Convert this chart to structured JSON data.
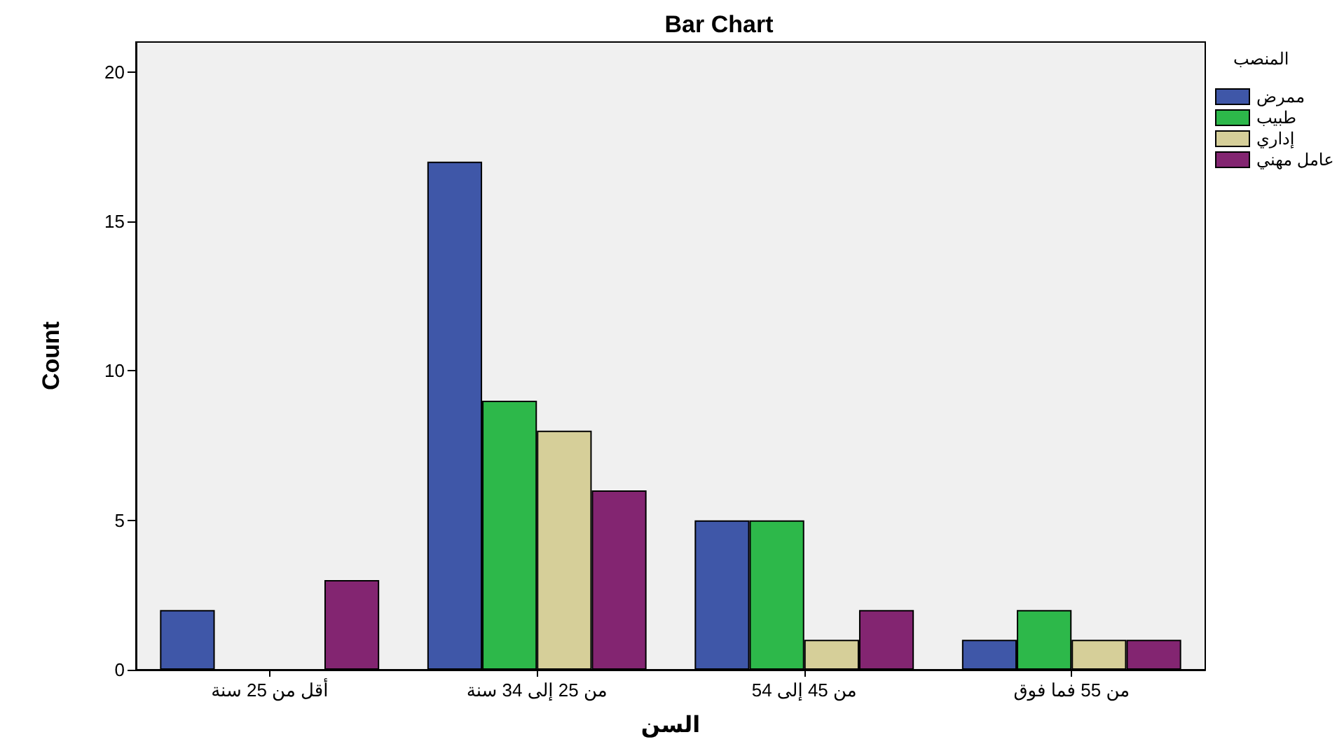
{
  "chart_data": {
    "type": "bar",
    "title": "Bar Chart",
    "xlabel": "السن",
    "ylabel": "Count",
    "legend_title": "المنصب",
    "categories": [
      "أقل من 25 سنة",
      "من 25 إلى 34 سنة",
      "من 45 إلى 54",
      "من 55 فما فوق"
    ],
    "series": [
      {
        "name": "ممرض",
        "color": "#3f57a8",
        "values": [
          2,
          17,
          5,
          1
        ]
      },
      {
        "name": "طبيب",
        "color": "#2db84a",
        "values": [
          null,
          9,
          5,
          2
        ]
      },
      {
        "name": "إداري",
        "color": "#d6cf99",
        "values": [
          null,
          8,
          1,
          1
        ]
      },
      {
        "name": "عامل مهني",
        "color": "#832571",
        "values": [
          3,
          6,
          2,
          1
        ]
      }
    ],
    "ylim": [
      0,
      21
    ],
    "yticks": [
      0,
      5,
      10,
      15,
      20
    ],
    "grid": false,
    "legend": "top right"
  }
}
